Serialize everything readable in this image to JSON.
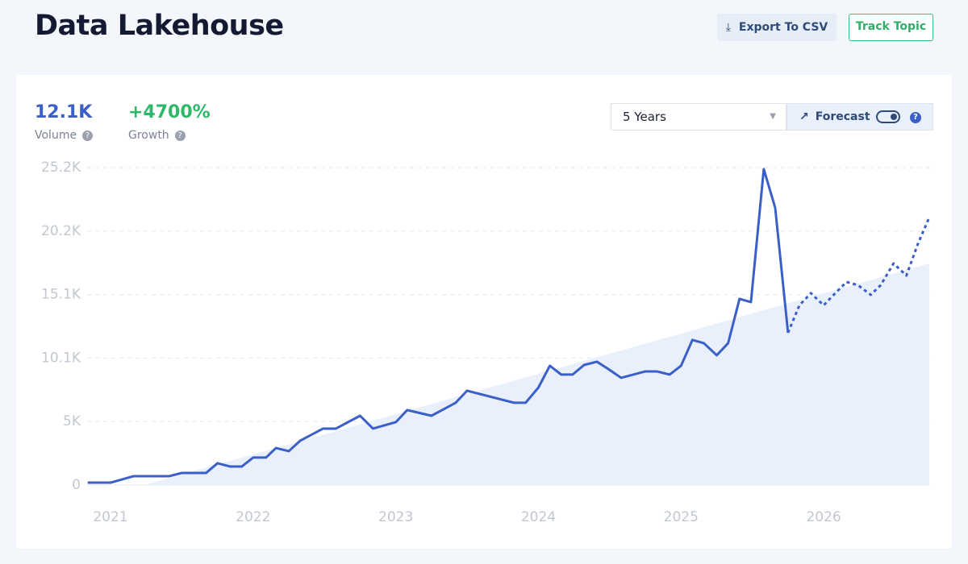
{
  "header": {
    "title": "Data Lakehouse",
    "export_button": "Export To CSV",
    "track_button": "Track Topic"
  },
  "stats": [
    {
      "value": "12.1K",
      "label": "Volume"
    },
    {
      "value": "+4700%",
      "label": "Growth"
    }
  ],
  "controls": {
    "range": "5 Years",
    "forecast": "Forecast"
  },
  "chart_data": {
    "type": "line",
    "xlim": [
      2020.836,
      2026.746
    ],
    "xticks": [
      2021,
      2022,
      2023,
      2024,
      2025,
      2026
    ],
    "ylim": [
      0,
      25200
    ],
    "yticks": [
      0,
      {
        "value": 5040,
        "label": "5K"
      },
      {
        "value": 10080,
        "label": "10.1K"
      },
      {
        "value": 15120,
        "label": "15.1K"
      },
      {
        "value": 20160,
        "label": "20.2K"
      },
      {
        "value": 25200,
        "label": "25.2K"
      }
    ],
    "grid": true,
    "series": [
      {
        "style": "area",
        "color": "#e9f0fb",
        "x": [
          2021.24,
          2026.74
        ],
        "values": [
          0,
          17590
        ]
      },
      {
        "style": "solid",
        "color": "#3a5fc8",
        "x": [
          2020.84,
          2021.0,
          2021.16,
          2021.41,
          2021.5,
          2021.67,
          2021.75,
          2021.84,
          2021.92,
          2022.0,
          2022.09,
          2022.16,
          2022.25,
          2022.33,
          2022.49,
          2022.58,
          2022.75,
          2022.84,
          2023.0,
          2023.08,
          2023.25,
          2023.42,
          2023.5,
          2023.83,
          2023.91,
          2024.0,
          2024.08,
          2024.16,
          2024.24,
          2024.32,
          2024.41,
          2024.49,
          2024.58,
          2024.75,
          2024.83,
          2024.92,
          2025.0,
          2025.08,
          2025.16,
          2025.25,
          2025.33,
          2025.41,
          2025.49,
          2025.58,
          2025.66,
          2025.75
        ],
        "values": [
          190,
          190,
          700,
          700,
          960,
          960,
          1730,
          1470,
          1470,
          2180,
          2180,
          2940,
          2690,
          3520,
          4480,
          4480,
          5500,
          4480,
          4990,
          5950,
          5500,
          6530,
          7490,
          6530,
          6530,
          7740,
          9470,
          8770,
          8770,
          9530,
          9790,
          9210,
          8510,
          9020,
          9020,
          8770,
          9470,
          11520,
          11260,
          10300,
          11260,
          14780,
          14520,
          25080,
          22010,
          12090
        ]
      },
      {
        "style": "dotted",
        "color": "#3a5fc8",
        "x": [
          2025.75,
          2025.83,
          2025.91,
          2026.0,
          2026.07,
          2026.16,
          2026.24,
          2026.33,
          2026.4,
          2026.49,
          2026.58,
          2026.66,
          2026.74
        ],
        "values": [
          12090,
          14270,
          15230,
          14270,
          15100,
          16120,
          15870,
          15100,
          15870,
          17590,
          16630,
          19130,
          21240
        ]
      }
    ]
  }
}
